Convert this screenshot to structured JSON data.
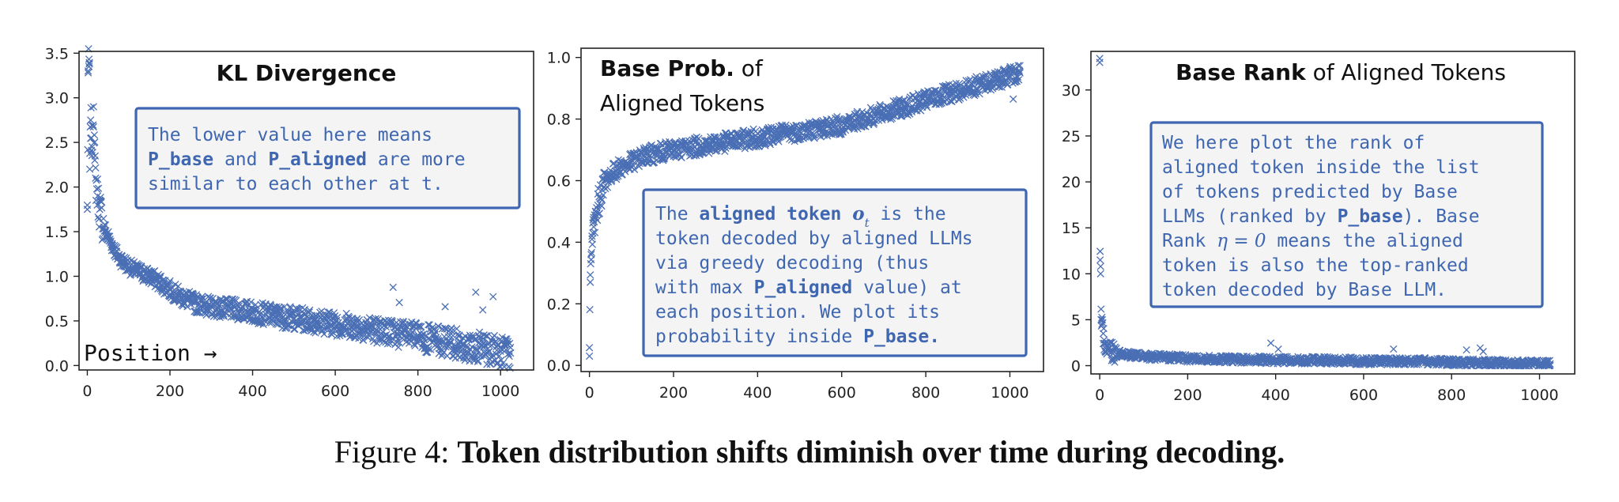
{
  "colors": {
    "marker": "#4a6fb5",
    "annotation": "#3f66b0",
    "box_fill": "#f4f4f4"
  },
  "caption": {
    "label": "Figure 4:",
    "text": "Token distribution shifts diminish over time during decoding."
  },
  "chart_data": [
    {
      "type": "scatter",
      "marker": "x",
      "title_parts": [
        {
          "text": "KL Divergence",
          "bold": true
        }
      ],
      "xlim": [
        -20,
        1080
      ],
      "ylim": [
        -0.05,
        3.52
      ],
      "xticks": [
        0,
        200,
        400,
        600,
        800,
        1000
      ],
      "yticks": [
        0.0,
        0.5,
        1.0,
        1.5,
        2.0,
        2.5,
        3.0,
        3.5
      ],
      "ytick_labels": [
        "0.0",
        "0.5",
        "1.0",
        "1.5",
        "2.0",
        "2.5",
        "3.0",
        "3.5"
      ],
      "x_note": "Position →",
      "annotation_lines": [
        [
          {
            "text": "The lower value here means"
          }
        ],
        [
          {
            "text": "P_base",
            "bold": true
          },
          {
            "text": " and "
          },
          {
            "text": "P_aligned",
            "bold": true
          },
          {
            "text": " are more"
          }
        ],
        [
          {
            "text": "similar to each other at t."
          }
        ]
      ],
      "series": [
        {
          "x": [
            0,
            2,
            4,
            5,
            6,
            8,
            10,
            12,
            15,
            18,
            20,
            25,
            30,
            40,
            50,
            60,
            75,
            90,
            110,
            130,
            150,
            170,
            200,
            230,
            260,
            300,
            350,
            400,
            450,
            500,
            550,
            600,
            650,
            700,
            750,
            800,
            850,
            900,
            950,
            1000,
            1024
          ],
          "y": [
            1.75,
            3.28,
            3.35,
            3.38,
            2.2,
            2.75,
            2.55,
            2.45,
            2.9,
            2.3,
            2.1,
            1.9,
            1.75,
            1.55,
            1.45,
            1.35,
            1.22,
            1.15,
            1.08,
            1.04,
            1.0,
            0.95,
            0.85,
            0.76,
            0.7,
            0.66,
            0.63,
            0.6,
            0.56,
            0.53,
            0.5,
            0.47,
            0.44,
            0.4,
            0.36,
            0.32,
            0.28,
            0.24,
            0.2,
            0.16,
            0.14
          ]
        }
      ]
    },
    {
      "type": "scatter",
      "marker": "x",
      "title_parts": [
        {
          "text": "Base Prob.",
          "bold": true
        },
        {
          "text": " of"
        }
      ],
      "title_line2": "Aligned Tokens",
      "xlim": [
        -20,
        1080
      ],
      "ylim": [
        -0.02,
        1.03
      ],
      "xticks": [
        0,
        200,
        400,
        600,
        800,
        1000
      ],
      "yticks": [
        0.0,
        0.2,
        0.4,
        0.6,
        0.8,
        1.0
      ],
      "ytick_labels": [
        "0.0",
        "0.2",
        "0.4",
        "0.6",
        "0.8",
        "1.0"
      ],
      "annotation_lines": [
        [
          {
            "text": "The "
          },
          {
            "text": "aligned token",
            "bold": true
          },
          {
            "text": " "
          },
          {
            "text": "o",
            "italicbold": true
          },
          {
            "text": "t",
            "sub": true
          },
          {
            "text": " is the"
          }
        ],
        [
          {
            "text": "token decoded by aligned LLMs"
          }
        ],
        [
          {
            "text": "via greedy decoding (thus"
          }
        ],
        [
          {
            "text": "with max "
          },
          {
            "text": "P_aligned",
            "bold": true
          },
          {
            "text": " value) at"
          }
        ],
        [
          {
            "text": "each position. We plot its"
          }
        ],
        [
          {
            "text": "probability inside "
          },
          {
            "text": "P_base.",
            "bold": true
          }
        ]
      ],
      "series": [
        {
          "x": [
            0,
            2,
            4,
            6,
            8,
            10,
            15,
            20,
            30,
            40,
            50,
            70,
            100,
            130,
            160,
            200,
            250,
            300,
            350,
            400,
            450,
            500,
            550,
            600,
            650,
            700,
            750,
            800,
            850,
            900,
            950,
            1000,
            1024
          ],
          "y": [
            0.03,
            0.27,
            0.36,
            0.41,
            0.43,
            0.45,
            0.48,
            0.52,
            0.57,
            0.6,
            0.62,
            0.64,
            0.66,
            0.68,
            0.69,
            0.7,
            0.71,
            0.72,
            0.73,
            0.74,
            0.75,
            0.76,
            0.77,
            0.78,
            0.8,
            0.82,
            0.84,
            0.86,
            0.88,
            0.9,
            0.92,
            0.94,
            0.95
          ]
        }
      ]
    },
    {
      "type": "scatter",
      "marker": "x",
      "title_parts": [
        {
          "text": "Base Rank",
          "bold": true
        },
        {
          "text": " of Aligned Tokens"
        }
      ],
      "xlim": [
        -20,
        1080
      ],
      "ylim": [
        -0.9,
        34.2
      ],
      "xticks": [
        0,
        200,
        400,
        600,
        800,
        1000
      ],
      "yticks": [
        0,
        5,
        10,
        15,
        20,
        25,
        30
      ],
      "ytick_labels": [
        "0",
        "5",
        "10",
        "15",
        "20",
        "25",
        "30"
      ],
      "annotation_lines": [
        [
          {
            "text": "We here plot the rank of"
          }
        ],
        [
          {
            "text": "aligned token inside the list"
          }
        ],
        [
          {
            "text": "of tokens predicted by Base"
          }
        ],
        [
          {
            "text": "LLMs (ranked by "
          },
          {
            "text": "P_base",
            "bold": true
          },
          {
            "text": "). Base"
          }
        ],
        [
          {
            "text": "Rank "
          },
          {
            "text": "η = 0",
            "italic": true
          },
          {
            "text": " means the aligned"
          }
        ],
        [
          {
            "text": "token is also the top-ranked"
          }
        ],
        [
          {
            "text": "token decoded by Base LLM."
          }
        ]
      ],
      "series": [
        {
          "x": [
            0,
            1,
            2,
            3,
            5,
            8,
            10,
            15,
            20,
            30,
            50,
            100,
            200,
            300,
            400,
            500,
            600,
            700,
            750,
            800,
            850,
            900,
            950,
            1000,
            1024
          ],
          "y": [
            33,
            11.5,
            10,
            5,
            4.5,
            3.5,
            2.8,
            2.2,
            1.9,
            1.6,
            1.3,
            1.0,
            0.8,
            0.7,
            0.6,
            0.6,
            0.5,
            0.5,
            0.45,
            0.4,
            0.35,
            0.3,
            0.25,
            0.2,
            0.2
          ]
        }
      ]
    }
  ]
}
